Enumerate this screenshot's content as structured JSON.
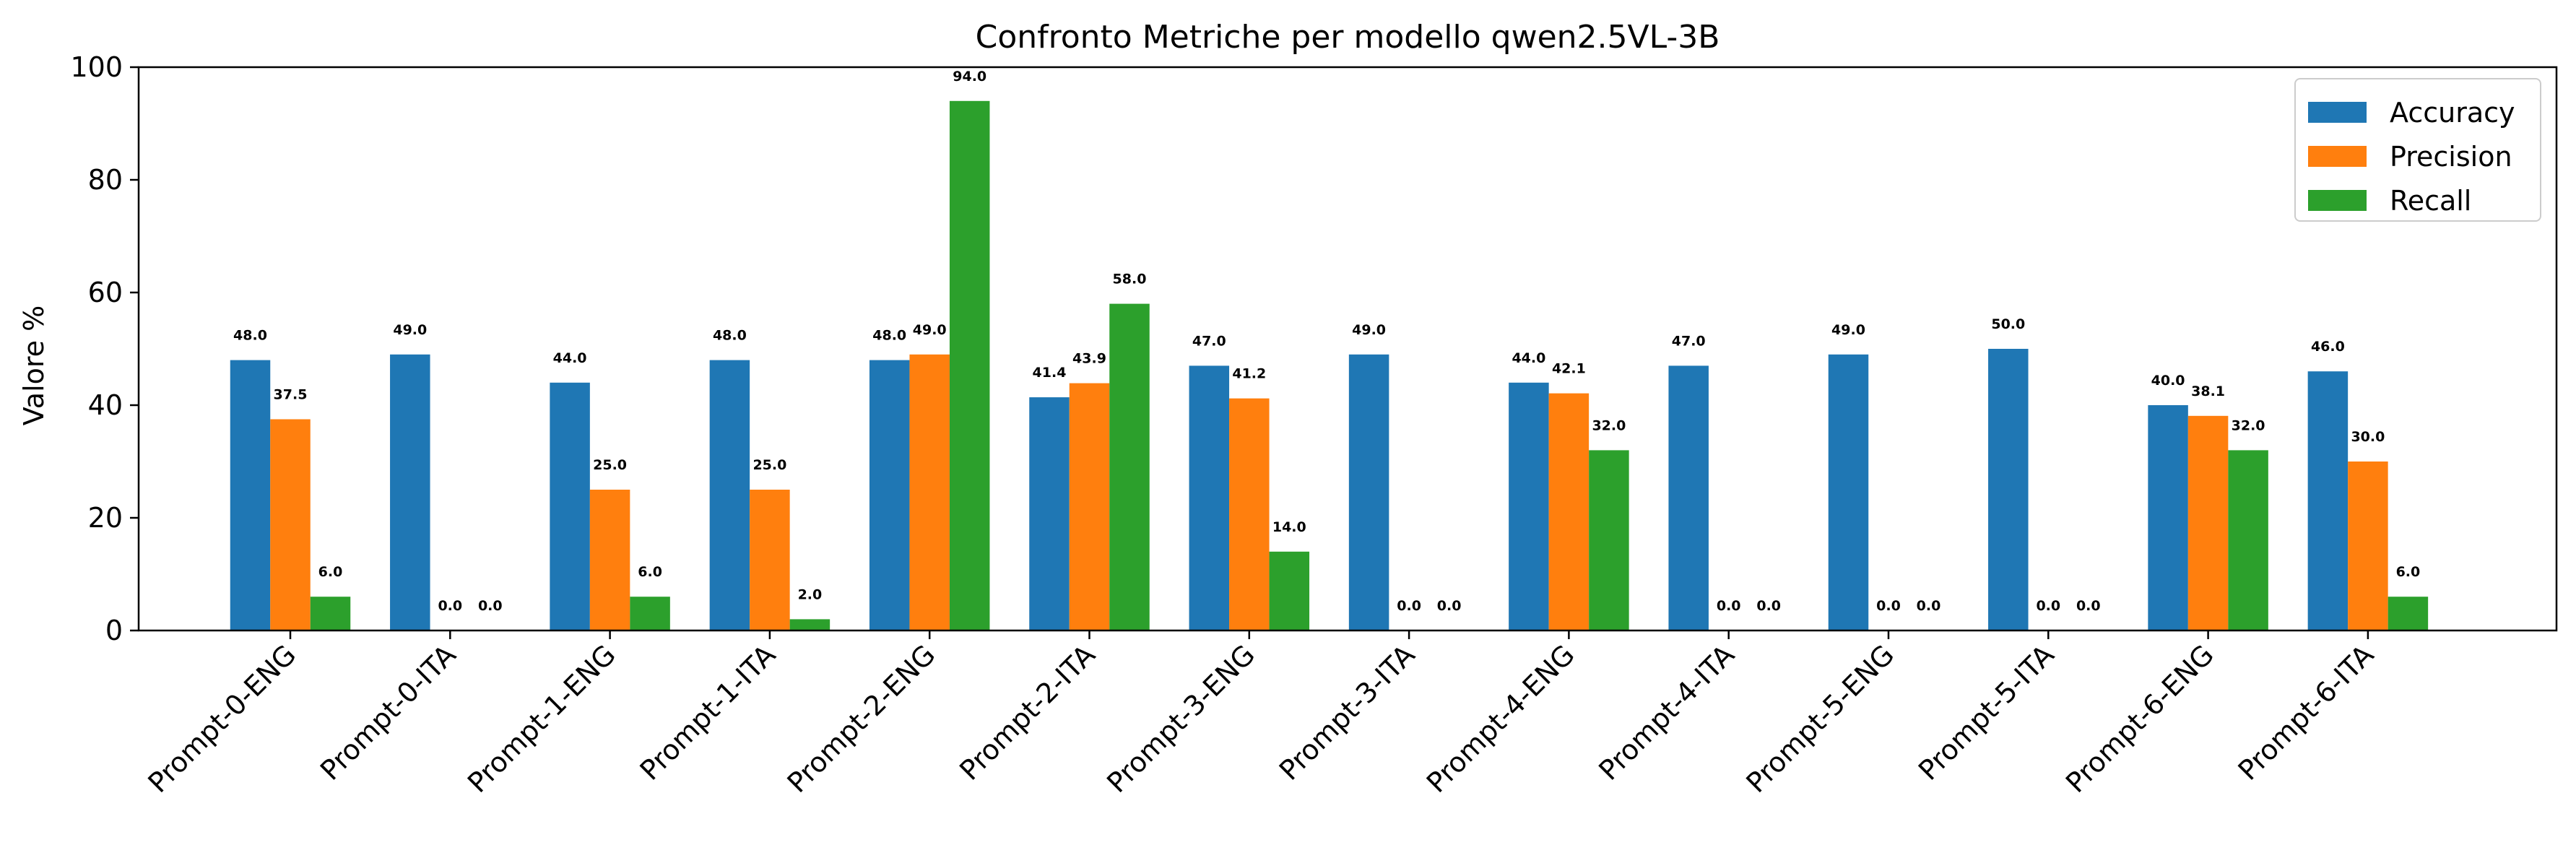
{
  "chart_data": {
    "type": "bar",
    "title": "Confronto Metriche per modello qwen2.5VL-3B",
    "xlabel": "",
    "ylabel": "Valore %",
    "ylim": [
      0,
      100
    ],
    "yticks": [
      0,
      20,
      40,
      60,
      80,
      100
    ],
    "grid": false,
    "legend_position": "top-right",
    "categories": [
      "Prompt-0-ENG",
      "Prompt-0-ITA",
      "Prompt-1-ENG",
      "Prompt-1-ITA",
      "Prompt-2-ENG",
      "Prompt-2-ITA",
      "Prompt-3-ENG",
      "Prompt-3-ITA",
      "Prompt-4-ENG",
      "Prompt-4-ITA",
      "Prompt-5-ENG",
      "Prompt-5-ITA",
      "Prompt-6-ENG",
      "Prompt-6-ITA"
    ],
    "series": [
      {
        "name": "Accuracy",
        "color": "#1f77b4",
        "values": [
          48.0,
          49.0,
          44.0,
          48.0,
          48.0,
          41.4,
          47.0,
          49.0,
          44.0,
          47.0,
          49.0,
          50.0,
          40.0,
          46.0
        ]
      },
      {
        "name": "Precision",
        "color": "#ff7f0e",
        "values": [
          37.5,
          0.0,
          25.0,
          25.0,
          49.0,
          43.9,
          41.2,
          0.0,
          42.1,
          0.0,
          0.0,
          0.0,
          38.1,
          30.0
        ]
      },
      {
        "name": "Recall",
        "color": "#2ca02c",
        "values": [
          6.0,
          0.0,
          6.0,
          2.0,
          94.0,
          58.0,
          14.0,
          0.0,
          32.0,
          0.0,
          0.0,
          0.0,
          32.0,
          6.0
        ]
      }
    ]
  }
}
